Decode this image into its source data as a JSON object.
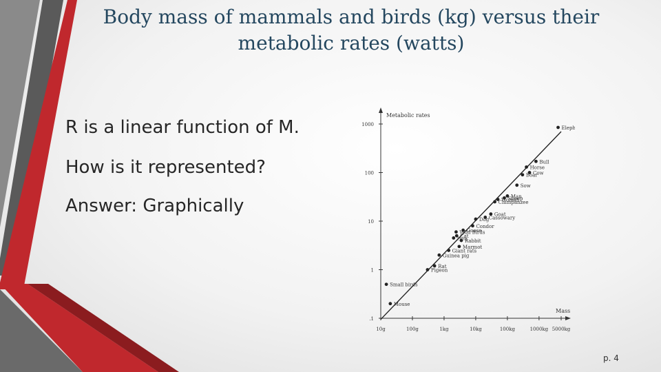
{
  "slide": {
    "title_line1": "Body mass of mammals and birds (kg) versus their",
    "title_line2": "metabolic rates (watts)",
    "bullets": [
      "R is a linear function of M.",
      "How is it represented?",
      "Answer: Graphically"
    ],
    "page_number": "p. 4"
  },
  "colors": {
    "accent_red": "#c0282d",
    "accent_dark_red": "#8b1c1f",
    "accent_gray": "#6a6a6a",
    "title_color": "#24475f"
  },
  "chart_data": {
    "type": "scatter",
    "scale": "log-log",
    "ylabel": "Metabolic rates",
    "xlabel": "Mass",
    "y_ticks": [
      "1000",
      "100",
      "10",
      "1",
      ".1"
    ],
    "y_tick_values": [
      1000,
      100,
      10,
      1,
      0.1
    ],
    "x_ticks": [
      "10g",
      "100g",
      "1kg",
      "10kg",
      "100kg",
      "1000kg",
      "5000kg"
    ],
    "x_tick_values_kg": [
      0.01,
      0.1,
      1,
      10,
      100,
      1000,
      5000
    ],
    "xlim_kg": [
      0.01,
      5000
    ],
    "ylim_watts": [
      0.1,
      1000
    ],
    "trend_line": [
      [
        0.01,
        0.095
      ],
      [
        6000,
        800
      ]
    ],
    "points": [
      {
        "label": "Mouse",
        "x": 0.02,
        "y": 0.2
      },
      {
        "label": "Small birds",
        "x": 0.015,
        "y": 0.5
      },
      {
        "label": "Pigeon",
        "x": 0.3,
        "y": 1
      },
      {
        "label": "Rat",
        "x": 0.5,
        "y": 1.2
      },
      {
        "label": "Guinea pig",
        "x": 0.7,
        "y": 2
      },
      {
        "label": "Giant rats",
        "x": 1.4,
        "y": 2.5
      },
      {
        "label": "Marmot",
        "x": 3,
        "y": 3
      },
      {
        "label": "Rabbit",
        "x": 3.5,
        "y": 4
      },
      {
        "label": "Hen",
        "x": 2,
        "y": 4.5
      },
      {
        "label": "Cat",
        "x": 2.5,
        "y": 5
      },
      {
        "label": "Wild Birds",
        "x": 2.4,
        "y": 6
      },
      {
        "label": "Goose",
        "x": 4,
        "y": 6.5
      },
      {
        "label": "Condor",
        "x": 8,
        "y": 8
      },
      {
        "label": "Dog",
        "x": 10,
        "y": 11
      },
      {
        "label": "Cassowary",
        "x": 20,
        "y": 12
      },
      {
        "label": "Goat",
        "x": 30,
        "y": 14
      },
      {
        "label": "Woman",
        "x": 50,
        "y": 28
      },
      {
        "label": "Chimpanzee",
        "x": 40,
        "y": 25
      },
      {
        "label": "Sheep",
        "x": 80,
        "y": 30
      },
      {
        "label": "Man",
        "x": 100,
        "y": 33
      },
      {
        "label": "Sow",
        "x": 200,
        "y": 55
      },
      {
        "label": "Boar",
        "x": 300,
        "y": 90
      },
      {
        "label": "Cow",
        "x": 500,
        "y": 100
      },
      {
        "label": "Horse",
        "x": 400,
        "y": 130
      },
      {
        "label": "Bull",
        "x": 800,
        "y": 170
      },
      {
        "label": "Elephant",
        "x": 4000,
        "y": 850
      }
    ]
  }
}
